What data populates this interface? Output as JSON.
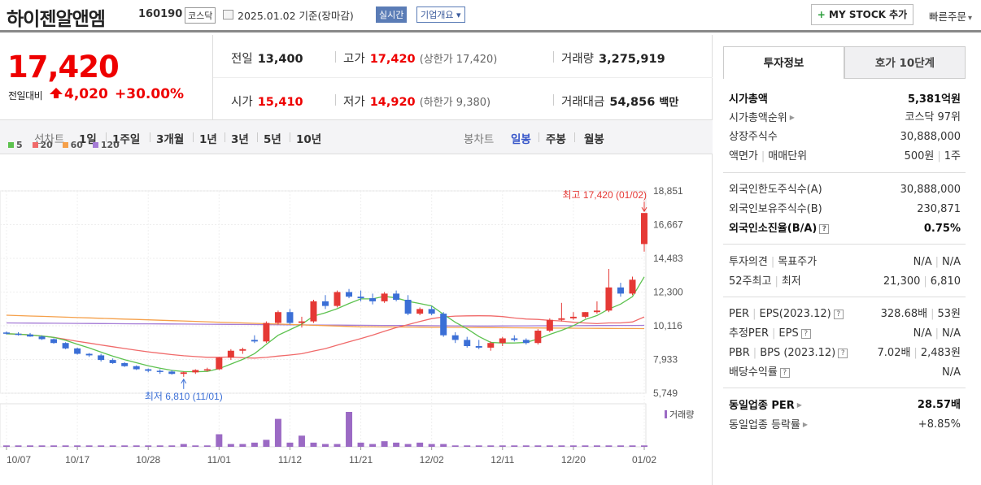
{
  "header": {
    "company": "하이젠알앤엠",
    "code": "160190",
    "market_badge": "코스닥",
    "as_of": "2025.01.02  기준(장마감)",
    "realtime_badge": "실시간",
    "corp_overview": "기업개요 ▾",
    "my_stock_plus": "+",
    "my_stock_label": "MY STOCK 추가",
    "quick_order": "빠른주문",
    "quick_order_arrow": "▾"
  },
  "price": {
    "current": "17,420",
    "change_label": "전일대비",
    "change_value": "4,020",
    "change_pct": "+30.00%"
  },
  "stats": {
    "prev_label": "전일",
    "prev": "13,400",
    "high_label": "고가",
    "high": "17,420",
    "high_sub": "(상한가 17,420)",
    "vol_label": "거래량",
    "vol": "3,275,919",
    "open_label": "시가",
    "open": "15,410",
    "low_label": "저가",
    "low": "14,920",
    "low_sub": "(하한가 9,380)",
    "amt_label": "거래대금",
    "amt": "54,856",
    "amt_unit": "백만"
  },
  "periods": {
    "line_label": "선차트",
    "line": [
      "1일",
      "1주일",
      "3개월",
      "1년",
      "3년",
      "5년",
      "10년"
    ],
    "candle_label": "봉차트",
    "candle": [
      "일봉",
      "주봉",
      "월봉"
    ],
    "selected": "일봉"
  },
  "legend": [
    "5",
    "20",
    "60",
    "120"
  ],
  "colors": {
    "ma5": "#5dc24f",
    "ma20": "#f06a6a",
    "ma60": "#f5a04a",
    "ma120": "#a57cd6",
    "up": "#e53935",
    "down": "#3b6fd6",
    "volume": "#9b6ac4"
  },
  "chart_data": {
    "type": "candlestick",
    "y_ticks": [
      "18,851",
      "16,667",
      "14,483",
      "12,300",
      "10,116",
      "7,933",
      "5,749"
    ],
    "ylim": [
      5749,
      18851
    ],
    "x_ticks": [
      "10/07",
      "10/17",
      "10/28",
      "11/01",
      "11/12",
      "11/21",
      "12/02",
      "12/11",
      "12/20",
      "01/02"
    ],
    "high_annotation": "최고 17,420 (01/02)",
    "low_annotation": "최저 6,810 (11/01)",
    "volume_label": "거래량",
    "candles": [
      [
        9680,
        9750,
        9550,
        9600
      ],
      [
        9600,
        9700,
        9480,
        9550
      ],
      [
        9550,
        9650,
        9400,
        9420
      ],
      [
        9420,
        9500,
        9200,
        9250
      ],
      [
        9250,
        9300,
        8950,
        9000
      ],
      [
        9000,
        9050,
        8600,
        8650
      ],
      [
        8650,
        8700,
        8250,
        8300
      ],
      [
        8300,
        8350,
        8100,
        8200
      ],
      [
        8200,
        8300,
        7800,
        7900
      ],
      [
        7900,
        8000,
        7650,
        7700
      ],
      [
        7700,
        7750,
        7450,
        7500
      ],
      [
        7500,
        7550,
        7250,
        7300
      ],
      [
        7300,
        7350,
        7100,
        7200
      ],
      [
        7200,
        7300,
        7000,
        7150
      ],
      [
        7150,
        7250,
        6950,
        7000
      ],
      [
        7000,
        7150,
        6810,
        7100
      ],
      [
        7100,
        7300,
        7000,
        7250
      ],
      [
        7250,
        7400,
        7150,
        7300
      ],
      [
        7300,
        8100,
        7250,
        8050
      ],
      [
        8050,
        8600,
        7900,
        8500
      ],
      [
        8500,
        8700,
        8300,
        8600
      ],
      [
        9200,
        9500,
        9000,
        9100
      ],
      [
        9100,
        10400,
        9000,
        10300
      ],
      [
        10300,
        11100,
        10200,
        11000
      ],
      [
        11000,
        11200,
        10200,
        10300
      ],
      [
        10300,
        10700,
        10000,
        10400
      ],
      [
        10400,
        11800,
        10300,
        11700
      ],
      [
        11700,
        12100,
        11200,
        11400
      ],
      [
        11400,
        12400,
        11300,
        12300
      ],
      [
        12300,
        12500,
        11900,
        12000
      ],
      [
        12000,
        12400,
        11700,
        11900
      ],
      [
        11900,
        12200,
        11500,
        11700
      ],
      [
        11700,
        12300,
        11600,
        12200
      ],
      [
        12200,
        12400,
        11700,
        11800
      ],
      [
        11800,
        12100,
        10800,
        10900
      ],
      [
        10900,
        11300,
        10800,
        11200
      ],
      [
        11200,
        11400,
        10800,
        10900
      ],
      [
        10900,
        11000,
        9400,
        9500
      ],
      [
        9500,
        9700,
        9000,
        9200
      ],
      [
        9200,
        9400,
        8700,
        8800
      ],
      [
        8800,
        9200,
        8600,
        8700
      ],
      [
        8700,
        9100,
        8500,
        9000
      ],
      [
        9000,
        9400,
        8800,
        9300
      ],
      [
        9300,
        9500,
        9100,
        9200
      ],
      [
        9200,
        9300,
        8900,
        9000
      ],
      [
        9000,
        9900,
        8900,
        9800
      ],
      [
        9800,
        10600,
        9700,
        10500
      ],
      [
        10500,
        11600,
        10400,
        10600
      ],
      [
        10600,
        11000,
        10500,
        10700
      ],
      [
        10700,
        11000,
        10600,
        11000
      ],
      [
        11000,
        11700,
        10900,
        11100
      ],
      [
        11100,
        13800,
        11000,
        12600
      ],
      [
        12600,
        12900,
        12000,
        12200
      ],
      [
        12200,
        13300,
        12100,
        13100
      ],
      [
        15410,
        17420,
        14920,
        17420
      ]
    ],
    "volumes": [
      1,
      1,
      1,
      1,
      1,
      1,
      1,
      1,
      1,
      1,
      1,
      1,
      1,
      1,
      1,
      2,
      1,
      1,
      9,
      2,
      2,
      3,
      5,
      20,
      3,
      8,
      3,
      2,
      2,
      25,
      3,
      2,
      4,
      3,
      2,
      3,
      2,
      2,
      1,
      1,
      1,
      1,
      1,
      1,
      1,
      1,
      1,
      1,
      1,
      1,
      1,
      1,
      1,
      1,
      1
    ]
  },
  "info_tabs": [
    "투자정보",
    "호가 10단계"
  ],
  "info": {
    "mcap_label": "시가총액",
    "mcap": "5,381억원",
    "mcap_rank_label": "시가총액순위",
    "mcap_rank": "코스닥 97위",
    "shares_label": "상장주식수",
    "shares": "30,888,000",
    "par_label": "액면가",
    "par_label2": "매매단위",
    "par": "500원",
    "unit": "1주",
    "foreign_limit_label": "외국인한도주식수(A)",
    "foreign_limit": "30,888,000",
    "foreign_hold_label": "외국인보유주식수(B)",
    "foreign_hold": "230,871",
    "foreign_rate_label": "외국인소진율(B/A)",
    "foreign_rate": "0.75%",
    "opinion_label": "투자의견",
    "target_label": "목표주가",
    "opinion": "N/A",
    "target": "N/A",
    "w52_label": "52주최고",
    "w52_low_label": "최저",
    "w52_high": "21,300",
    "w52_low": "6,810",
    "per_label": "PER",
    "eps_label": "EPS(2023.12)",
    "per": "328.68배",
    "eps": "53원",
    "eper_label": "추정PER",
    "eeps_label": "EPS",
    "eper": "N/A",
    "eeps": "N/A",
    "pbr_label": "PBR",
    "bps_label": "BPS (2023.12)",
    "pbr": "7.02배",
    "bps": "2,483원",
    "div_label": "배당수익률",
    "div": "N/A",
    "ind_per_label": "동일업종 PER",
    "ind_per": "28.57배",
    "ind_chg_label": "동일업종 등락률",
    "ind_chg": "+8.85%"
  }
}
